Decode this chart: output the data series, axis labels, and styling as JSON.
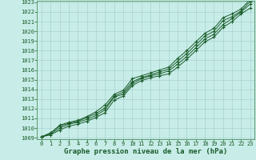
{
  "xlabel": "Graphe pression niveau de la mer (hPa)",
  "ylim": [
    1009,
    1023
  ],
  "xlim": [
    -0.5,
    23.5
  ],
  "yticks": [
    1009,
    1010,
    1011,
    1012,
    1013,
    1014,
    1015,
    1016,
    1017,
    1018,
    1019,
    1020,
    1021,
    1022,
    1023
  ],
  "xticks": [
    0,
    1,
    2,
    3,
    4,
    5,
    6,
    7,
    8,
    9,
    10,
    11,
    12,
    13,
    14,
    15,
    16,
    17,
    18,
    19,
    20,
    21,
    22,
    23
  ],
  "bg_color": "#c8ede8",
  "grid_color": "#a0ccc8",
  "line_color": "#1a5c2a",
  "spine_color": "#4a8c5a",
  "series": [
    [
      1009.1,
      1009.3,
      1009.8,
      1010.2,
      1010.4,
      1010.7,
      1011.1,
      1011.6,
      1012.9,
      1013.3,
      1014.4,
      1014.9,
      1015.2,
      1015.4,
      1015.6,
      1016.3,
      1017.1,
      1018.0,
      1018.9,
      1019.4,
      1020.4,
      1021.0,
      1021.8,
      1022.4
    ],
    [
      1009.1,
      1009.4,
      1010.0,
      1010.4,
      1010.6,
      1010.9,
      1011.3,
      1011.9,
      1013.2,
      1013.5,
      1014.6,
      1015.1,
      1015.4,
      1015.6,
      1015.9,
      1016.6,
      1017.4,
      1018.3,
      1019.2,
      1019.7,
      1020.7,
      1021.3,
      1022.0,
      1022.8
    ],
    [
      1009.1,
      1009.5,
      1010.2,
      1010.5,
      1010.7,
      1011.1,
      1011.5,
      1012.1,
      1013.3,
      1013.7,
      1014.8,
      1015.2,
      1015.5,
      1015.8,
      1016.1,
      1016.9,
      1017.7,
      1018.6,
      1019.5,
      1020.0,
      1021.1,
      1021.5,
      1022.1,
      1023.1
    ],
    [
      1009.1,
      1009.5,
      1010.3,
      1010.6,
      1010.8,
      1011.2,
      1011.7,
      1012.4,
      1013.5,
      1013.9,
      1015.1,
      1015.4,
      1015.7,
      1016.0,
      1016.3,
      1017.2,
      1018.0,
      1018.9,
      1019.8,
      1020.3,
      1021.4,
      1021.8,
      1022.3,
      1023.3
    ]
  ],
  "marker": "+",
  "markersize": 3.5,
  "linewidth": 0.7,
  "xlabel_fontsize": 6.5,
  "tick_fontsize": 5.0
}
